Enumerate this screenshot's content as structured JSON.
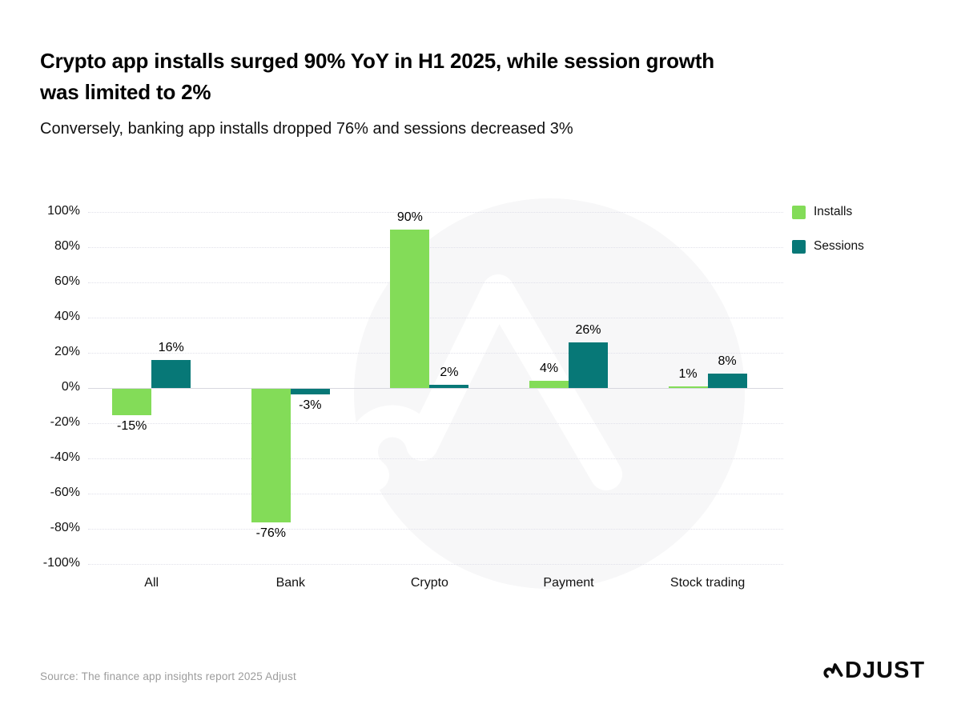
{
  "header": {
    "title_line1": "Crypto app installs surged 90% YoY in H1 2025, while session growth",
    "title_line2": "was limited to 2%",
    "subtitle": "Conversely, banking app installs dropped 76% and sessions decreased 3%"
  },
  "chart_data": {
    "type": "bar",
    "categories": [
      "All",
      "Bank",
      "Crypto",
      "Payment",
      "Stock trading"
    ],
    "series": [
      {
        "name": "Installs",
        "color": "#83DC58",
        "values": [
          -15,
          -76,
          90,
          4,
          1
        ]
      },
      {
        "name": "Sessions",
        "color": "#077877",
        "values": [
          16,
          -3,
          2,
          26,
          8
        ]
      }
    ],
    "value_label_suffix": "%",
    "ytick_labels": [
      "100%",
      "80%",
      "60%",
      "40%",
      "20%",
      "0%",
      "-20%",
      "-40%",
      "-60%",
      "-80%",
      "-100%"
    ],
    "ylim": [
      -100,
      100
    ],
    "grid": "horizontal dotted gridlines, solid zero baseline",
    "legend_position": "top-right",
    "watermark_color": "#F7F7F8"
  },
  "footer": {
    "source": "Source: The finance app insights report 2025 Adjust",
    "brand": "ADJUST",
    "brand_rest": "DJUST"
  }
}
